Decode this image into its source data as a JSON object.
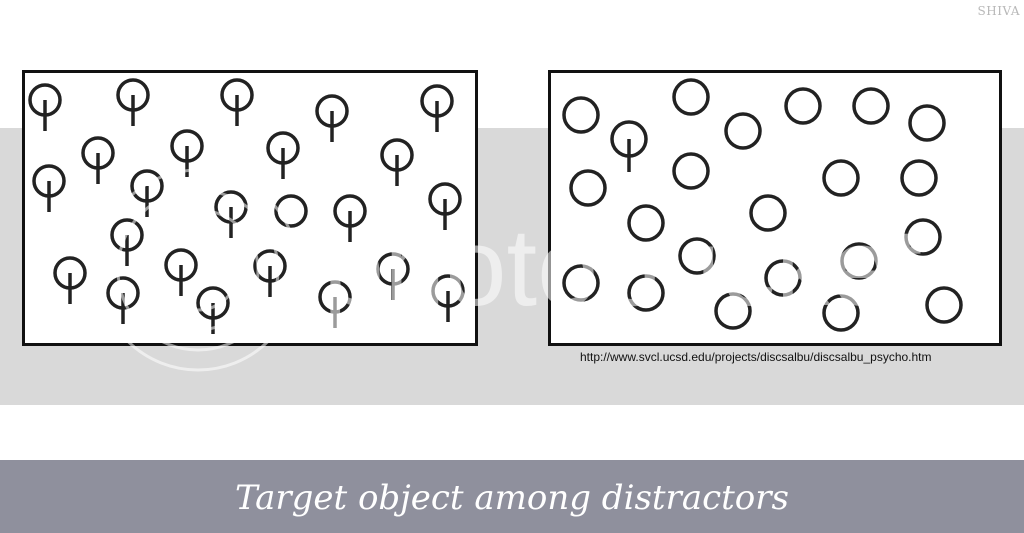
{
  "corner_label": "SHIVA",
  "source_url": "http://www.svcl.ucsd.edu/projects/discsalbu/discsalbu_psycho.htm",
  "title": "Target object among distractors",
  "watermark_text": "photobucket",
  "colors": {
    "band": "#d9d9d9",
    "bottom_bar": "#8f909d",
    "stroke": "#222222"
  },
  "panels": {
    "left": {
      "description_items": "many circles with vertical bar, one plain circle"
    },
    "right": {
      "description_items": "many plain circles, one circle with vertical bar"
    }
  }
}
